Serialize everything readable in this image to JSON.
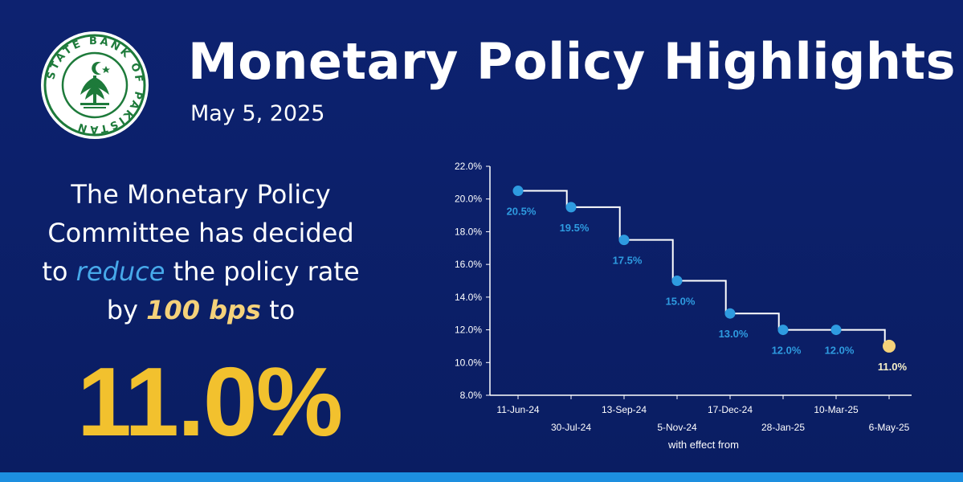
{
  "header": {
    "title": "Monetary Policy Highlights",
    "date": "May 5, 2025"
  },
  "logo": {
    "name": "State Bank of Pakistan seal",
    "text": "STATE BANK OF PAKISTAN",
    "colors": {
      "ring": "#1d7a3a",
      "fill": "#ffffff"
    }
  },
  "message": {
    "line1": "The Monetary Policy",
    "line2": "Committee has decided",
    "to": "to",
    "reduce": "reduce",
    "line3_rest": "the policy rate",
    "by": "by",
    "bps": "100 bps",
    "to2": "to",
    "rate": "11.0%"
  },
  "colors": {
    "background": "#0b1f66",
    "accent_blue": "#2e9be0",
    "accent_yellow": "#f2c12e",
    "highlight_point": "#f5d27a",
    "bottom_bar": "#1d8fe0"
  },
  "chart_data": {
    "type": "line",
    "step": true,
    "xlabel": "with effect from",
    "ylabel": "",
    "ylim": [
      8.0,
      22.0
    ],
    "yticks": [
      "8.0%",
      "10.0%",
      "12.0%",
      "14.0%",
      "16.0%",
      "18.0%",
      "20.0%",
      "22.0%"
    ],
    "ytick_values": [
      8,
      10,
      12,
      14,
      16,
      18,
      20,
      22
    ],
    "categories": [
      "11-Jun-24",
      "30-Jul-24",
      "13-Sep-24",
      "5-Nov-24",
      "17-Dec-24",
      "28-Jan-25",
      "10-Mar-25",
      "6-May-25"
    ],
    "values": [
      20.5,
      19.5,
      17.5,
      15.0,
      13.0,
      12.0,
      12.0,
      11.0
    ],
    "labels": [
      "20.5%",
      "19.5%",
      "17.5%",
      "15.0%",
      "13.0%",
      "12.0%",
      "12.0%",
      "11.0%"
    ],
    "grid": false,
    "legend": "none"
  }
}
